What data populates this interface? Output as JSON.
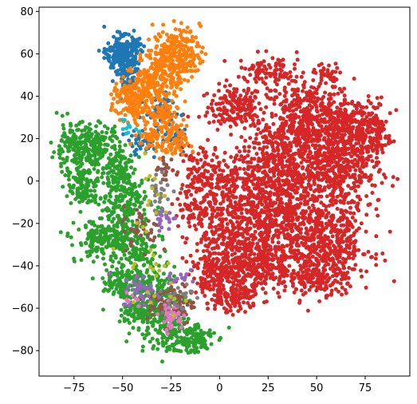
{
  "chart_data": {
    "type": "scatter",
    "title": "",
    "xlabel": "",
    "ylabel": "",
    "xlim": [
      -93,
      98
    ],
    "ylim": [
      -92,
      82
    ],
    "xticks": [
      -75,
      -50,
      -25,
      0,
      25,
      50,
      75
    ],
    "yticks": [
      -80,
      -60,
      -40,
      -20,
      0,
      20,
      40,
      60,
      80
    ],
    "grid": false,
    "legend": "none",
    "series": [
      {
        "color": "#d62728",
        "clusters": [
          {
            "cx": 8,
            "cy": 35,
            "sx": 7,
            "sy": 5,
            "n": 160
          },
          {
            "cx": 20,
            "cy": 52,
            "sx": 5,
            "sy": 4,
            "n": 60
          },
          {
            "cx": 32,
            "cy": 52,
            "sx": 4,
            "sy": 3,
            "n": 40
          },
          {
            "cx": 45,
            "cy": 28,
            "sx": 12,
            "sy": 10,
            "n": 500
          },
          {
            "cx": 55,
            "cy": 50,
            "sx": 3,
            "sy": 3,
            "n": 30
          },
          {
            "cx": 70,
            "cy": 25,
            "sx": 8,
            "sy": 7,
            "n": 260
          },
          {
            "cx": 82,
            "cy": 23,
            "sx": 3,
            "sy": 4,
            "n": 50
          },
          {
            "cx": 62,
            "cy": 5,
            "sx": 10,
            "sy": 10,
            "n": 380
          },
          {
            "cx": 30,
            "cy": 5,
            "sx": 12,
            "sy": 12,
            "n": 460
          },
          {
            "cx": 5,
            "cy": -15,
            "sx": 12,
            "sy": 13,
            "n": 520
          },
          {
            "cx": 35,
            "cy": -20,
            "sx": 10,
            "sy": 12,
            "n": 380
          },
          {
            "cx": 58,
            "cy": -30,
            "sx": 10,
            "sy": 10,
            "n": 360
          },
          {
            "cx": 20,
            "cy": -40,
            "sx": 10,
            "sy": 7,
            "n": 280
          },
          {
            "cx": 0,
            "cy": -45,
            "sx": 7,
            "sy": 7,
            "n": 220
          },
          {
            "cx": 10,
            "cy": -55,
            "sx": 5,
            "sy": 3,
            "n": 70
          },
          {
            "cx": 50,
            "cy": -45,
            "sx": 7,
            "sy": 4,
            "n": 130
          },
          {
            "cx": -10,
            "cy": 0,
            "sx": 5,
            "sy": 10,
            "n": 120
          }
        ]
      },
      {
        "color": "#2ca02c",
        "clusters": [
          {
            "cx": -75,
            "cy": 15,
            "sx": 6,
            "sy": 6,
            "n": 170
          },
          {
            "cx": -62,
            "cy": 17,
            "sx": 5,
            "sy": 5,
            "n": 110
          },
          {
            "cx": -52,
            "cy": 5,
            "sx": 5,
            "sy": 7,
            "n": 140
          },
          {
            "cx": -70,
            "cy": -3,
            "sx": 4,
            "sy": 5,
            "n": 110
          },
          {
            "cx": -48,
            "cy": -12,
            "sx": 6,
            "sy": 6,
            "n": 150
          },
          {
            "cx": -58,
            "cy": -28,
            "sx": 8,
            "sy": 5,
            "n": 230
          },
          {
            "cx": -40,
            "cy": -35,
            "sx": 6,
            "sy": 6,
            "n": 110
          },
          {
            "cx": -50,
            "cy": -47,
            "sx": 5,
            "sy": 4,
            "n": 100
          },
          {
            "cx": -35,
            "cy": -55,
            "sx": 8,
            "sy": 6,
            "n": 170
          },
          {
            "cx": -30,
            "cy": -68,
            "sx": 7,
            "sy": 6,
            "n": 130
          },
          {
            "cx": -15,
            "cy": -74,
            "sx": 6,
            "sy": 4,
            "n": 130
          },
          {
            "cx": -40,
            "cy": -62,
            "sx": 5,
            "sy": 3,
            "n": 70
          }
        ]
      },
      {
        "color": "#1f77b4",
        "clusters": [
          {
            "cx": -50,
            "cy": 60,
            "sx": 4,
            "sy": 4,
            "n": 260
          },
          {
            "cx": -47,
            "cy": 50,
            "sx": 3,
            "sy": 4,
            "n": 70
          },
          {
            "cx": -30,
            "cy": 32,
            "sx": 4,
            "sy": 5,
            "n": 60
          },
          {
            "cx": -40,
            "cy": 18,
            "sx": 4,
            "sy": 3,
            "n": 40
          },
          {
            "cx": -22,
            "cy": 20,
            "sx": 3,
            "sy": 3,
            "n": 20
          }
        ]
      },
      {
        "color": "#ff7f0e",
        "clusters": [
          {
            "cx": -22,
            "cy": 60,
            "sx": 6,
            "sy": 6,
            "n": 230
          },
          {
            "cx": -32,
            "cy": 48,
            "sx": 6,
            "sy": 6,
            "n": 200
          },
          {
            "cx": -45,
            "cy": 38,
            "sx": 5,
            "sy": 5,
            "n": 160
          },
          {
            "cx": -30,
            "cy": 30,
            "sx": 4,
            "sy": 4,
            "n": 70
          },
          {
            "cx": -25,
            "cy": 18,
            "sx": 4,
            "sy": 4,
            "n": 80
          },
          {
            "cx": -36,
            "cy": 22,
            "sx": 3,
            "sy": 3,
            "n": 40
          }
        ]
      },
      {
        "color": "#8c564b",
        "clusters": [
          {
            "cx": -25,
            "cy": -58,
            "sx": 6,
            "sy": 5,
            "n": 90
          },
          {
            "cx": -40,
            "cy": -22,
            "sx": 5,
            "sy": 5,
            "n": 40
          },
          {
            "cx": -28,
            "cy": 5,
            "sx": 3,
            "sy": 4,
            "n": 20
          }
        ]
      },
      {
        "color": "#9467bd",
        "clusters": [
          {
            "cx": -40,
            "cy": -52,
            "sx": 5,
            "sy": 4,
            "n": 40
          },
          {
            "cx": -28,
            "cy": -17,
            "sx": 3,
            "sy": 3,
            "n": 25
          },
          {
            "cx": -22,
            "cy": -45,
            "sx": 3,
            "sy": 3,
            "n": 15
          }
        ]
      },
      {
        "color": "#e377c2",
        "clusters": [
          {
            "cx": -25,
            "cy": -64,
            "sx": 3,
            "sy": 3,
            "n": 40
          },
          {
            "cx": -45,
            "cy": -57,
            "sx": 2,
            "sy": 2,
            "n": 8
          }
        ]
      },
      {
        "color": "#7f7f7f",
        "clusters": [
          {
            "cx": -32,
            "cy": -5,
            "sx": 4,
            "sy": 6,
            "n": 30
          },
          {
            "cx": -22,
            "cy": -55,
            "sx": 4,
            "sy": 4,
            "n": 20
          }
        ]
      },
      {
        "color": "#bcbd22",
        "clusters": [
          {
            "cx": -38,
            "cy": -12,
            "sx": 6,
            "sy": 15,
            "n": 20
          },
          {
            "cx": -30,
            "cy": -50,
            "sx": 6,
            "sy": 6,
            "n": 15
          }
        ]
      },
      {
        "color": "#17becf",
        "clusters": [
          {
            "cx": -45,
            "cy": 25,
            "sx": 3,
            "sy": 3,
            "n": 10
          }
        ]
      }
    ]
  }
}
